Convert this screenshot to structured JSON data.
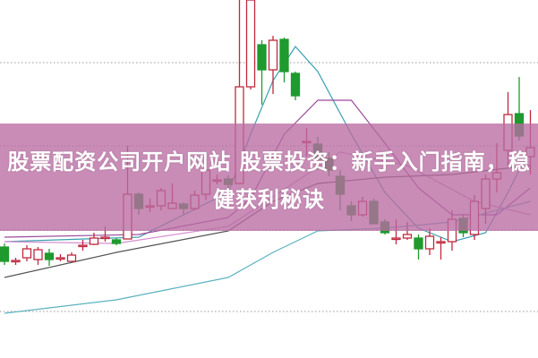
{
  "title": "股票配资公司开户网站 股票投资：新手入门指南，稳健获利秘诀",
  "chart_data": {
    "type": "candlestick",
    "title": "股票配资公司开户网站 股票投资：新手入门指南，稳健获利秘诀",
    "xlabel": "",
    "ylabel": "",
    "ylim": [
      0,
      400
    ],
    "grid": true,
    "legend": "none",
    "colors": {
      "up": "#c0283f",
      "down": "#1f9a2e",
      "banner": "#b86ca2",
      "grid": "#999999"
    },
    "candles": [
      {
        "o": 124,
        "c": 108,
        "h": 128,
        "l": 104
      },
      {
        "o": 109,
        "c": 109,
        "h": 112,
        "l": 104
      },
      {
        "o": 112,
        "c": 122,
        "h": 126,
        "l": 108
      },
      {
        "o": 110,
        "c": 121,
        "h": 124,
        "l": 104
      },
      {
        "o": 117,
        "c": 110,
        "h": 122,
        "l": 103
      },
      {
        "o": 112,
        "c": 112,
        "h": 116,
        "l": 108
      },
      {
        "o": 108,
        "c": 115,
        "h": 118,
        "l": 110
      },
      {
        "o": 126,
        "c": 126,
        "h": 132,
        "l": 120
      },
      {
        "o": 127,
        "c": 134,
        "h": 140,
        "l": 126
      },
      {
        "o": 135,
        "c": 135,
        "h": 147,
        "l": 130
      },
      {
        "o": 132,
        "c": 128,
        "h": 134,
        "l": 126
      },
      {
        "o": 133,
        "c": 183,
        "h": 237,
        "l": 133
      },
      {
        "o": 183,
        "c": 167,
        "h": 185,
        "l": 160
      },
      {
        "o": 170,
        "c": 170,
        "h": 178,
        "l": 163
      },
      {
        "o": 170,
        "c": 187,
        "h": 190,
        "l": 165
      },
      {
        "o": 167,
        "c": 173,
        "h": 195,
        "l": 168
      },
      {
        "o": 172,
        "c": 167,
        "h": 174,
        "l": 160
      },
      {
        "o": 167,
        "c": 182,
        "h": 187,
        "l": 165
      },
      {
        "o": 183,
        "c": 210,
        "h": 222,
        "l": 177
      },
      {
        "o": 199,
        "c": 199,
        "h": 205,
        "l": 194
      },
      {
        "o": 200,
        "c": 194,
        "h": 204,
        "l": 190
      },
      {
        "o": 195,
        "c": 303,
        "h": 400,
        "l": 195
      },
      {
        "o": 303,
        "c": 400,
        "h": 400,
        "l": 300
      },
      {
        "o": 350,
        "c": 322,
        "h": 355,
        "l": 283
      },
      {
        "o": 322,
        "c": 355,
        "h": 360,
        "l": 295
      },
      {
        "o": 356,
        "c": 320,
        "h": 358,
        "l": 308
      },
      {
        "o": 318,
        "c": 293,
        "h": 320,
        "l": 288
      },
      {
        "o": 242,
        "c": 242,
        "h": 257,
        "l": 225
      },
      {
        "o": 239,
        "c": 222,
        "h": 247,
        "l": 210
      },
      {
        "o": 223,
        "c": 210,
        "h": 230,
        "l": 203
      },
      {
        "o": 203,
        "c": 183,
        "h": 210,
        "l": 165
      },
      {
        "o": 170,
        "c": 160,
        "h": 175,
        "l": 153
      },
      {
        "o": 160,
        "c": 175,
        "h": 180,
        "l": 158
      },
      {
        "o": 175,
        "c": 150,
        "h": 178,
        "l": 150
      },
      {
        "o": 152,
        "c": 140,
        "h": 155,
        "l": 138
      },
      {
        "o": 134,
        "c": 134,
        "h": 155,
        "l": 127
      },
      {
        "o": 134,
        "c": 138,
        "h": 152,
        "l": 132
      },
      {
        "o": 134,
        "c": 122,
        "h": 138,
        "l": 110
      },
      {
        "o": 122,
        "c": 136,
        "h": 145,
        "l": 115
      },
      {
        "o": 130,
        "c": 130,
        "h": 135,
        "l": 110
      },
      {
        "o": 130,
        "c": 155,
        "h": 165,
        "l": 120
      },
      {
        "o": 156,
        "c": 140,
        "h": 160,
        "l": 135
      },
      {
        "o": 138,
        "c": 175,
        "h": 182,
        "l": 132
      },
      {
        "o": 167,
        "c": 200,
        "h": 205,
        "l": 150
      },
      {
        "o": 200,
        "c": 207,
        "h": 240,
        "l": 185
      },
      {
        "o": 232,
        "c": 272,
        "h": 297,
        "l": 215
      },
      {
        "o": 273,
        "c": 248,
        "h": 314,
        "l": 243
      },
      {
        "o": 225,
        "c": 235,
        "h": 277,
        "l": 205
      }
    ],
    "moving_averages": [
      {
        "color": "#3a9fb0",
        "points": [
          [
            0,
            130
          ],
          [
            12,
            135
          ],
          [
            20,
            185
          ],
          [
            22,
            250
          ],
          [
            24,
            310
          ],
          [
            26,
            348
          ],
          [
            28,
            320
          ],
          [
            31,
            250
          ],
          [
            34,
            185
          ],
          [
            37,
            145
          ],
          [
            40,
            130
          ],
          [
            43,
            140
          ],
          [
            45,
            185
          ],
          [
            47,
            235
          ]
        ]
      },
      {
        "color": "#9b4a9b",
        "points": [
          [
            0,
            135
          ],
          [
            12,
            138
          ],
          [
            20,
            157
          ],
          [
            22,
            178
          ],
          [
            25,
            250
          ],
          [
            28,
            288
          ],
          [
            31,
            288
          ],
          [
            34,
            240
          ],
          [
            37,
            190
          ],
          [
            40,
            160
          ],
          [
            44,
            160
          ],
          [
            47,
            190
          ]
        ]
      },
      {
        "color": "#d58fd0",
        "points": [
          [
            0,
            130
          ],
          [
            10,
            128
          ],
          [
            20,
            147
          ],
          [
            24,
            180
          ],
          [
            30,
            230
          ],
          [
            36,
            215
          ],
          [
            42,
            175
          ],
          [
            47,
            160
          ]
        ]
      },
      {
        "color": "#555555",
        "points": [
          [
            0,
            90
          ],
          [
            10,
            118
          ],
          [
            20,
            142
          ],
          [
            24,
            175
          ],
          [
            28,
            195
          ],
          [
            34,
            202
          ],
          [
            40,
            205
          ],
          [
            47,
            215
          ]
        ]
      },
      {
        "color": "#5bb3c0",
        "points": [
          [
            0,
            50
          ],
          [
            10,
            65
          ],
          [
            20,
            90
          ],
          [
            24,
            118
          ],
          [
            28,
            142
          ],
          [
            34,
            145
          ],
          [
            40,
            152
          ],
          [
            47,
            175
          ]
        ]
      }
    ]
  }
}
